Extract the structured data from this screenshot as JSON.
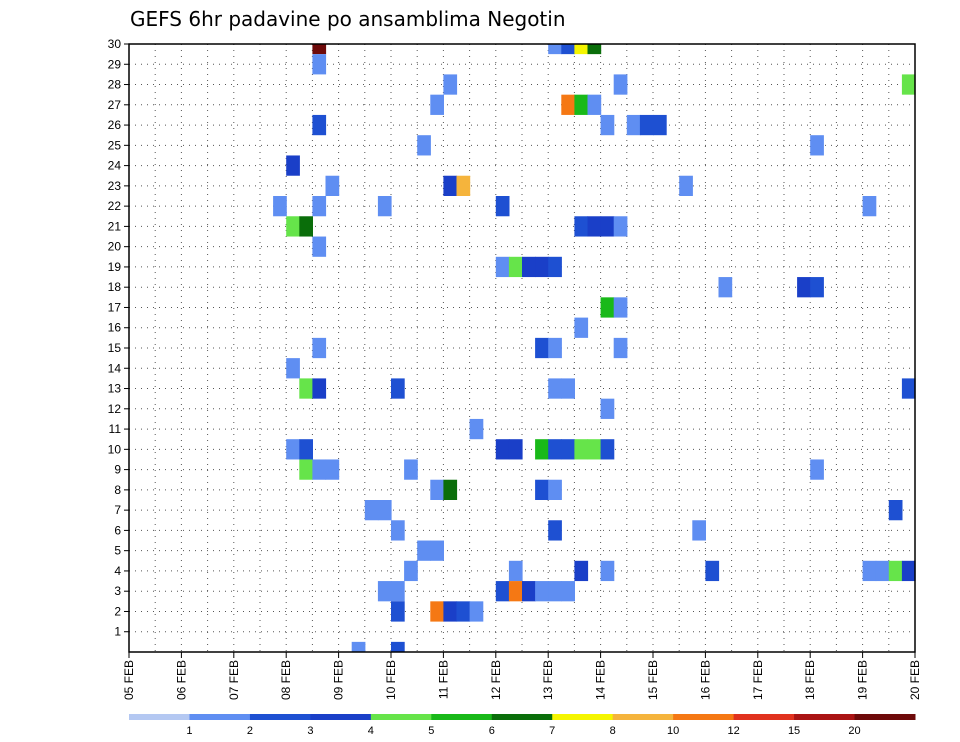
{
  "chart_data": {
    "type": "heatmap",
    "title": "GEFS 6hr padavine po ansamblima Negotin",
    "x_labels": [
      "05 FEB",
      "06 FEB",
      "07 FEB",
      "08 FEB",
      "09 FEB",
      "10 FEB",
      "11 FEB",
      "12 FEB",
      "13 FEB",
      "14 FEB",
      "15 FEB",
      "16 FEB",
      "17 FEB",
      "18 FEB",
      "19 FEB",
      "20 FEB"
    ],
    "y_labels": [
      "1",
      "2",
      "3",
      "4",
      "5",
      "6",
      "7",
      "8",
      "9",
      "10",
      "11",
      "12",
      "13",
      "14",
      "15",
      "16",
      "17",
      "18",
      "19",
      "20",
      "21",
      "22",
      "23",
      "24",
      "25",
      "26",
      "27",
      "28",
      "29",
      "30"
    ],
    "xlim_days": [
      0,
      15
    ],
    "ylim_members": [
      0,
      30
    ],
    "grid": true,
    "colorbar": {
      "levels": [
        "1",
        "2",
        "3",
        "4",
        "5",
        "6",
        "7",
        "8",
        "10",
        "12",
        "15",
        "20"
      ],
      "colors": [
        "#b4c8f2",
        "#5f8ef2",
        "#1e50d2",
        "#1a3fc8",
        "#66e44a",
        "#19b919",
        "#0a6e0a",
        "#f5f500",
        "#f5b43c",
        "#f57814",
        "#e1321e",
        "#aa1414",
        "#6e0a0a"
      ]
    },
    "cells": [
      {
        "member": 30,
        "day": 3.5,
        "value": 22
      },
      {
        "member": 30,
        "day": 8.0,
        "value": 1.5
      },
      {
        "member": 30,
        "day": 8.25,
        "value": 2.5
      },
      {
        "member": 30,
        "day": 8.5,
        "value": 7.5
      },
      {
        "member": 30,
        "day": 8.75,
        "value": 6.5
      },
      {
        "member": 29,
        "day": 3.5,
        "value": 1.5
      },
      {
        "member": 28,
        "day": 6.0,
        "value": 1.5
      },
      {
        "member": 28,
        "day": 9.25,
        "value": 1.5
      },
      {
        "member": 28,
        "day": 14.75,
        "value": 4.5
      },
      {
        "member": 27,
        "day": 5.75,
        "value": 1.5
      },
      {
        "member": 27,
        "day": 8.25,
        "value": 11
      },
      {
        "member": 27,
        "day": 8.5,
        "value": 5.5
      },
      {
        "member": 27,
        "day": 8.75,
        "value": 1.5
      },
      {
        "member": 26,
        "day": 3.5,
        "value": 2.5
      },
      {
        "member": 26,
        "day": 9.0,
        "value": 1.5
      },
      {
        "member": 26,
        "day": 9.5,
        "value": 1.5
      },
      {
        "member": 26,
        "day": 9.75,
        "value": 2.5
      },
      {
        "member": 26,
        "day": 10.0,
        "value": 2.5
      },
      {
        "member": 25,
        "day": 5.5,
        "value": 1.5
      },
      {
        "member": 25,
        "day": 13.0,
        "value": 1.5
      },
      {
        "member": 24,
        "day": 3.0,
        "value": 3.5
      },
      {
        "member": 23,
        "day": 3.75,
        "value": 1.5
      },
      {
        "member": 23,
        "day": 6.0,
        "value": 3.5
      },
      {
        "member": 23,
        "day": 6.25,
        "value": 9
      },
      {
        "member": 23,
        "day": 10.5,
        "value": 1.5
      },
      {
        "member": 22,
        "day": 2.75,
        "value": 1.5
      },
      {
        "member": 22,
        "day": 3.5,
        "value": 1.5
      },
      {
        "member": 22,
        "day": 4.75,
        "value": 1.5
      },
      {
        "member": 22,
        "day": 7.0,
        "value": 2.5
      },
      {
        "member": 22,
        "day": 14.0,
        "value": 1.5
      },
      {
        "member": 21,
        "day": 3.0,
        "value": 4.5
      },
      {
        "member": 21,
        "day": 3.25,
        "value": 6.5
      },
      {
        "member": 21,
        "day": 8.5,
        "value": 2.5
      },
      {
        "member": 21,
        "day": 8.75,
        "value": 3.5
      },
      {
        "member": 21,
        "day": 9.0,
        "value": 3.5
      },
      {
        "member": 21,
        "day": 9.25,
        "value": 1.5
      },
      {
        "member": 20,
        "day": 3.5,
        "value": 1.5
      },
      {
        "member": 19,
        "day": 7.0,
        "value": 1.5
      },
      {
        "member": 19,
        "day": 7.25,
        "value": 4.5
      },
      {
        "member": 19,
        "day": 7.5,
        "value": 3.5
      },
      {
        "member": 19,
        "day": 7.75,
        "value": 3.5
      },
      {
        "member": 19,
        "day": 8.0,
        "value": 2.5
      },
      {
        "member": 18,
        "day": 11.25,
        "value": 1.5
      },
      {
        "member": 18,
        "day": 12.75,
        "value": 3.5
      },
      {
        "member": 18,
        "day": 13.0,
        "value": 2.5
      },
      {
        "member": 17,
        "day": 9.0,
        "value": 5.5
      },
      {
        "member": 17,
        "day": 9.25,
        "value": 1.5
      },
      {
        "member": 16,
        "day": 8.5,
        "value": 1.5
      },
      {
        "member": 15,
        "day": 3.5,
        "value": 1.5
      },
      {
        "member": 15,
        "day": 7.75,
        "value": 2.5
      },
      {
        "member": 15,
        "day": 8.0,
        "value": 1.5
      },
      {
        "member": 15,
        "day": 9.25,
        "value": 1.5
      },
      {
        "member": 14,
        "day": 3.0,
        "value": 1.5
      },
      {
        "member": 13,
        "day": 3.25,
        "value": 4.5
      },
      {
        "member": 13,
        "day": 3.5,
        "value": 3.5
      },
      {
        "member": 13,
        "day": 5.0,
        "value": 2.5
      },
      {
        "member": 13,
        "day": 8.0,
        "value": 1.5
      },
      {
        "member": 13,
        "day": 8.25,
        "value": 1.5
      },
      {
        "member": 13,
        "day": 14.75,
        "value": 2.5
      },
      {
        "member": 12,
        "day": 9.0,
        "value": 1.5
      },
      {
        "member": 11,
        "day": 6.5,
        "value": 1.5
      },
      {
        "member": 10,
        "day": 3.0,
        "value": 1.5
      },
      {
        "member": 10,
        "day": 3.25,
        "value": 2.5
      },
      {
        "member": 10,
        "day": 7.0,
        "value": 3.5
      },
      {
        "member": 10,
        "day": 7.25,
        "value": 3.5
      },
      {
        "member": 10,
        "day": 7.75,
        "value": 5.5
      },
      {
        "member": 10,
        "day": 8.0,
        "value": 2.5
      },
      {
        "member": 10,
        "day": 8.25,
        "value": 2.5
      },
      {
        "member": 10,
        "day": 8.5,
        "value": 4.5
      },
      {
        "member": 10,
        "day": 8.75,
        "value": 4.5
      },
      {
        "member": 10,
        "day": 9.0,
        "value": 2.5
      },
      {
        "member": 9,
        "day": 3.25,
        "value": 4.5
      },
      {
        "member": 9,
        "day": 3.5,
        "value": 1.5
      },
      {
        "member": 9,
        "day": 3.75,
        "value": 1.5
      },
      {
        "member": 9,
        "day": 5.25,
        "value": 1.5
      },
      {
        "member": 9,
        "day": 13.0,
        "value": 1.5
      },
      {
        "member": 8,
        "day": 5.75,
        "value": 1.5
      },
      {
        "member": 8,
        "day": 6.0,
        "value": 6.5
      },
      {
        "member": 8,
        "day": 7.75,
        "value": 2.5
      },
      {
        "member": 8,
        "day": 8.0,
        "value": 1.5
      },
      {
        "member": 7,
        "day": 4.5,
        "value": 1.5
      },
      {
        "member": 7,
        "day": 4.75,
        "value": 1.5
      },
      {
        "member": 7,
        "day": 14.5,
        "value": 2.5
      },
      {
        "member": 6,
        "day": 5.0,
        "value": 1.5
      },
      {
        "member": 6,
        "day": 8.0,
        "value": 2.5
      },
      {
        "member": 6,
        "day": 10.75,
        "value": 1.5
      },
      {
        "member": 5,
        "day": 5.5,
        "value": 1.5
      },
      {
        "member": 5,
        "day": 5.75,
        "value": 1.5
      },
      {
        "member": 4,
        "day": 5.25,
        "value": 1.5
      },
      {
        "member": 4,
        "day": 7.25,
        "value": 1.5
      },
      {
        "member": 4,
        "day": 8.5,
        "value": 3.5
      },
      {
        "member": 4,
        "day": 9.0,
        "value": 1.5
      },
      {
        "member": 4,
        "day": 11.0,
        "value": 2.5
      },
      {
        "member": 4,
        "day": 14.0,
        "value": 1.5
      },
      {
        "member": 4,
        "day": 14.25,
        "value": 1.5
      },
      {
        "member": 4,
        "day": 14.5,
        "value": 4.5
      },
      {
        "member": 4,
        "day": 14.75,
        "value": 3.5
      },
      {
        "member": 3,
        "day": 4.75,
        "value": 1.5
      },
      {
        "member": 3,
        "day": 5.0,
        "value": 1.5
      },
      {
        "member": 3,
        "day": 7.0,
        "value": 2.5
      },
      {
        "member": 3,
        "day": 7.25,
        "value": 11
      },
      {
        "member": 3,
        "day": 7.5,
        "value": 3.5
      },
      {
        "member": 3,
        "day": 7.75,
        "value": 1.5
      },
      {
        "member": 3,
        "day": 8.0,
        "value": 1.5
      },
      {
        "member": 3,
        "day": 8.25,
        "value": 1.5
      },
      {
        "member": 2,
        "day": 5.0,
        "value": 2.5
      },
      {
        "member": 2,
        "day": 5.75,
        "value": 11
      },
      {
        "member": 2,
        "day": 6.0,
        "value": 3.5
      },
      {
        "member": 2,
        "day": 6.25,
        "value": 2.5
      },
      {
        "member": 2,
        "day": 6.5,
        "value": 1.5
      },
      {
        "member": 0,
        "day": 4.25,
        "value": 1.5
      },
      {
        "member": 0,
        "day": 5.0,
        "value": 2.5
      }
    ]
  }
}
